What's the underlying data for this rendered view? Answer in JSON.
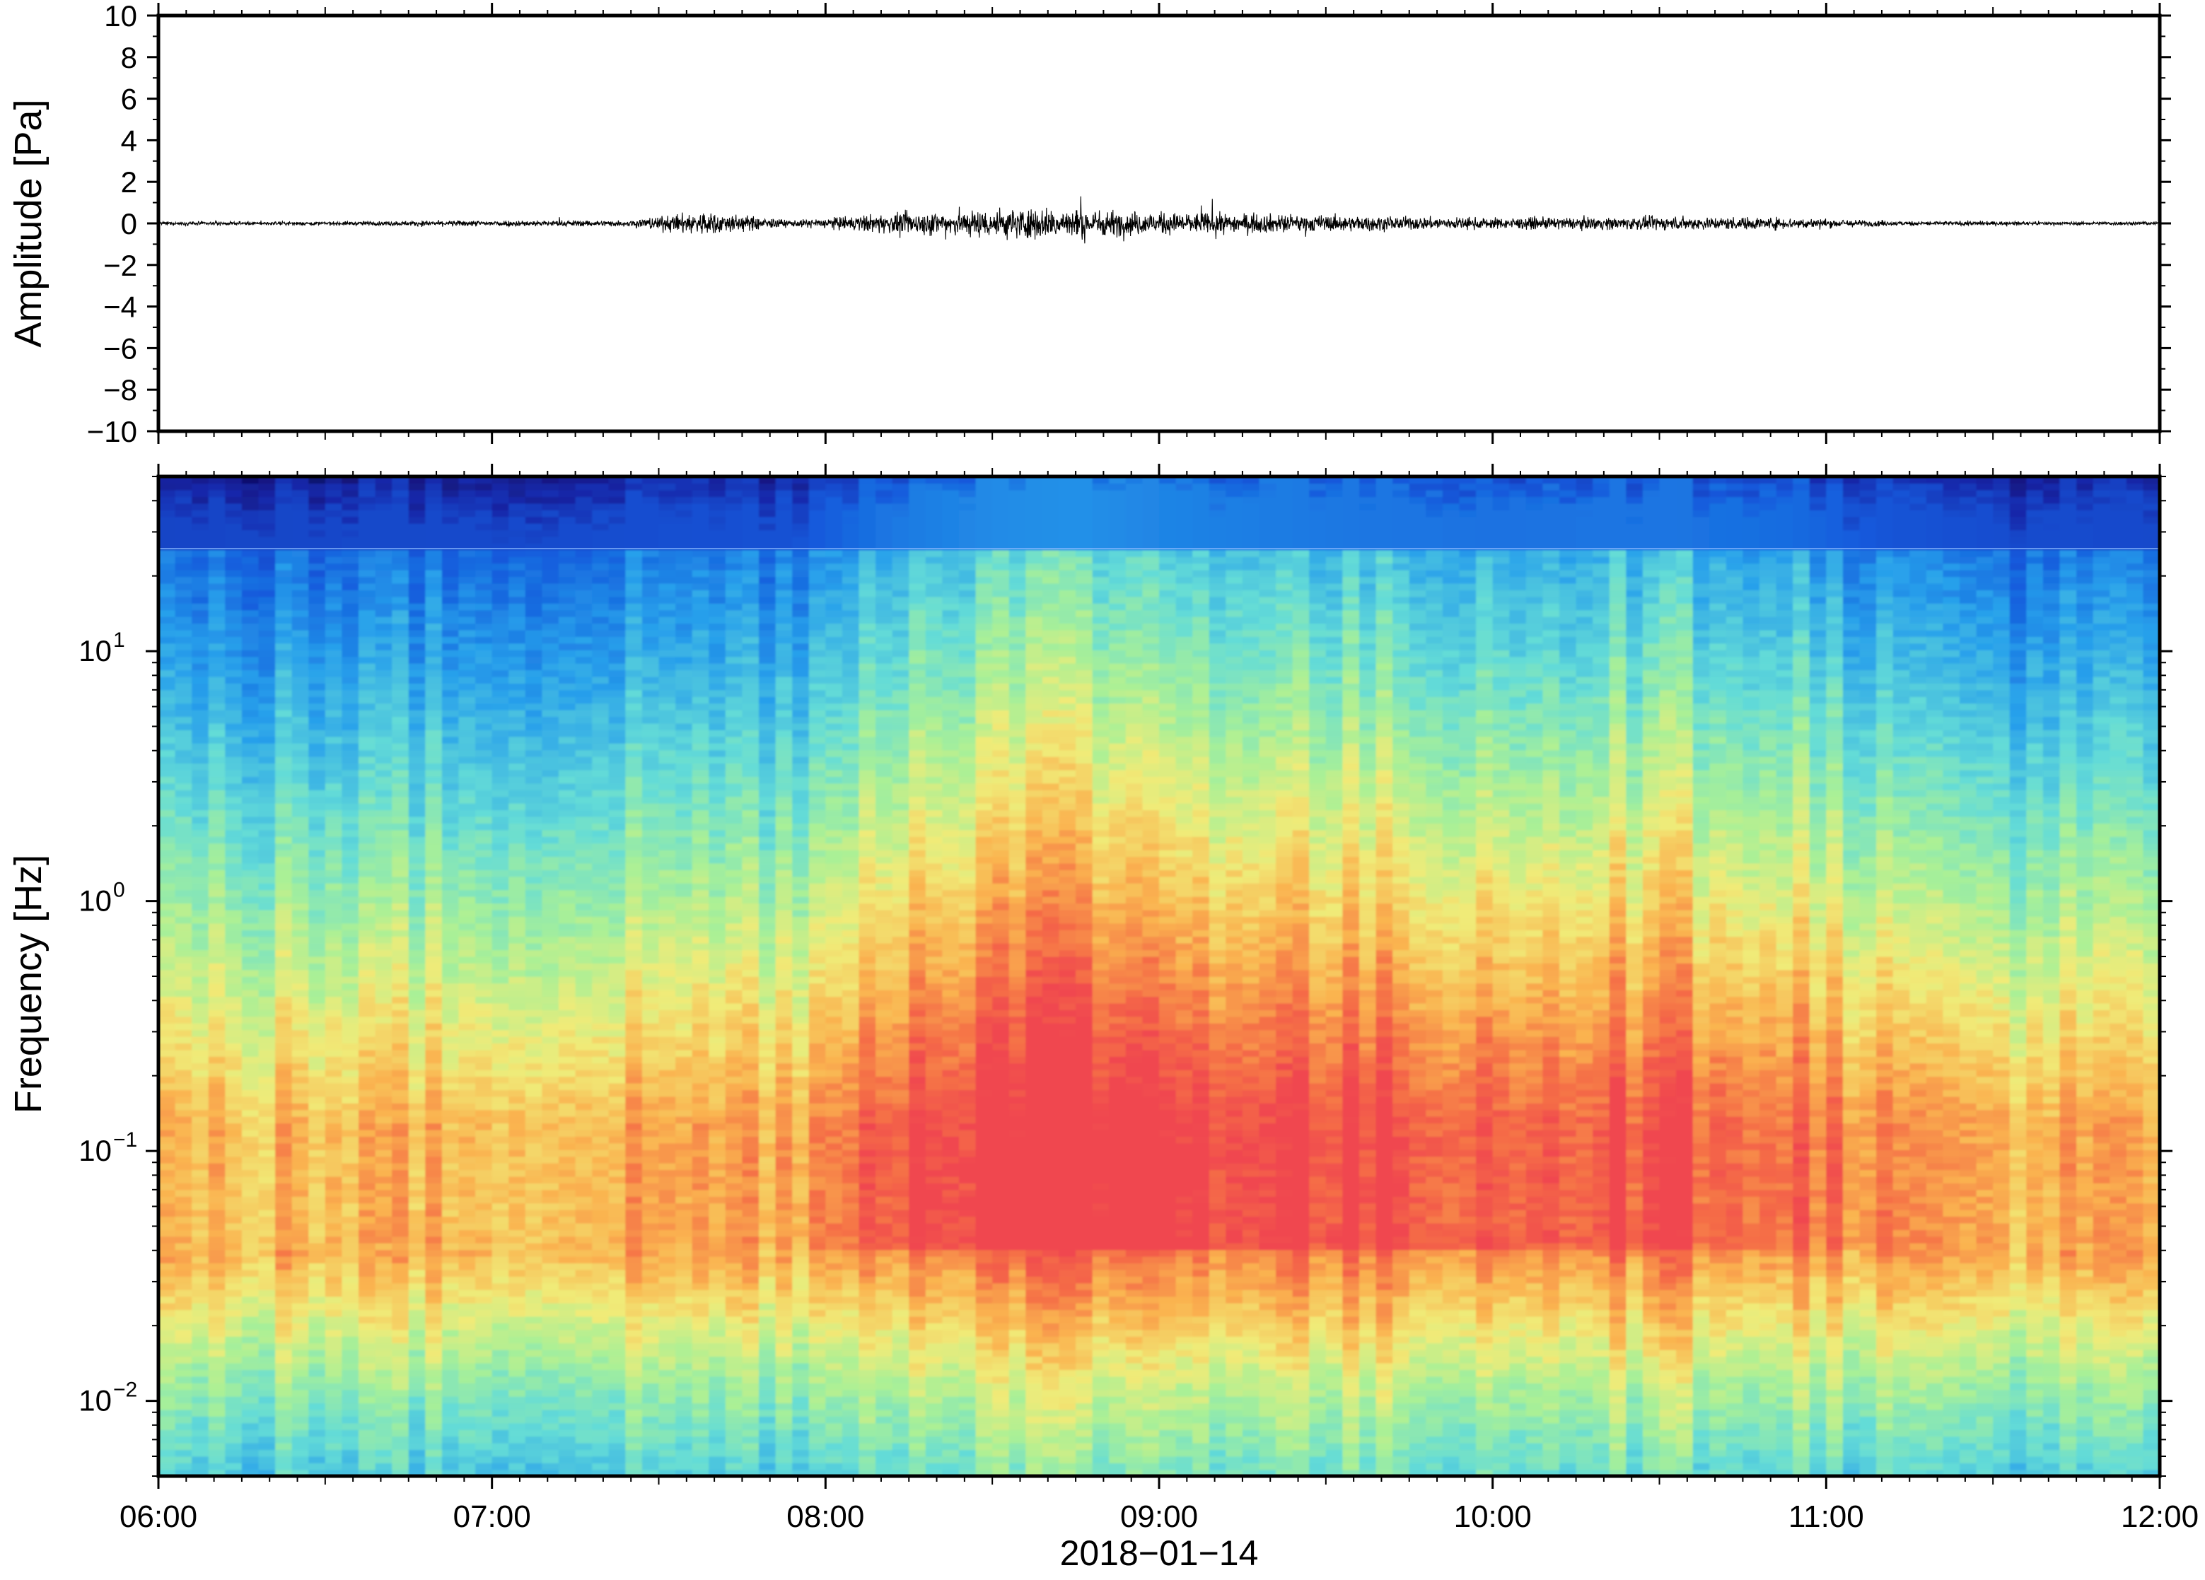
{
  "colors": {
    "frame": "#000000",
    "background": "#ffffff",
    "trace": "#000000",
    "colormap_low": "#11116b",
    "colormap_mid": "#7fe6c8",
    "colormap_high": "#f0484a"
  },
  "chart_data": [
    {
      "type": "line",
      "title": "",
      "ylabel": "Amplitude [Pa]",
      "xlabel": "",
      "ylim": [
        -10,
        10
      ],
      "yticks": [
        10,
        8,
        6,
        4,
        2,
        0,
        -2,
        -4,
        -6,
        -8,
        -10
      ],
      "ytick_labels": [
        "10",
        "8",
        "6",
        "4",
        "2",
        "0",
        "−2",
        "−4",
        "−6",
        "−8",
        "−10"
      ],
      "xlim_hours": [
        6,
        12
      ],
      "series": [
        {
          "x_hours": [
            6.0,
            6.5,
            7.0,
            7.4,
            7.63,
            7.9,
            8.15,
            8.5,
            8.6,
            8.75,
            9.0,
            9.3,
            9.6,
            10.0,
            10.3,
            10.5,
            10.85,
            11.2,
            11.6,
            12.0
          ],
          "envelope_pa": [
            0.15,
            0.15,
            0.25,
            0.25,
            1.0,
            0.25,
            0.75,
            1.2,
            1.3,
            1.2,
            0.9,
            0.8,
            0.6,
            0.45,
            0.5,
            0.55,
            0.5,
            0.2,
            0.15,
            0.15
          ]
        }
      ],
      "grid": false
    },
    {
      "type": "heatmap",
      "title": "",
      "ylabel": "Frequency [Hz]",
      "xlabel": "2018−01−14",
      "y_scale": "log",
      "ylim_hz": [
        0.005,
        50
      ],
      "ytick_values": [
        0.01,
        0.1,
        1,
        10
      ],
      "ytick_labels": [
        {
          "base": "10",
          "exp": "−2"
        },
        {
          "base": "10",
          "exp": "−1"
        },
        {
          "base": "10",
          "exp": "0"
        },
        {
          "base": "10",
          "exp": "1"
        }
      ],
      "x_tick_hours": [
        6,
        7,
        8,
        9,
        10,
        11,
        12
      ],
      "x_tick_labels": [
        "06:00",
        "07:00",
        "08:00",
        "09:00",
        "10:00",
        "11:00",
        "12:00"
      ],
      "colormap": "jet-like (dark blue low power → cyan/green → yellow → red high power)",
      "activity_by_hour": {
        "x_hours": [
          6.0,
          6.5,
          7.0,
          7.5,
          7.9,
          8.2,
          8.5,
          8.75,
          9.0,
          9.5,
          10.0,
          10.5,
          10.9,
          11.2,
          11.6,
          12.0
        ],
        "relative_level": [
          0.35,
          0.38,
          0.4,
          0.45,
          0.48,
          0.8,
          0.95,
          1.0,
          0.9,
          0.8,
          0.75,
          0.78,
          0.7,
          0.5,
          0.42,
          0.4
        ]
      },
      "grid": false
    }
  ]
}
